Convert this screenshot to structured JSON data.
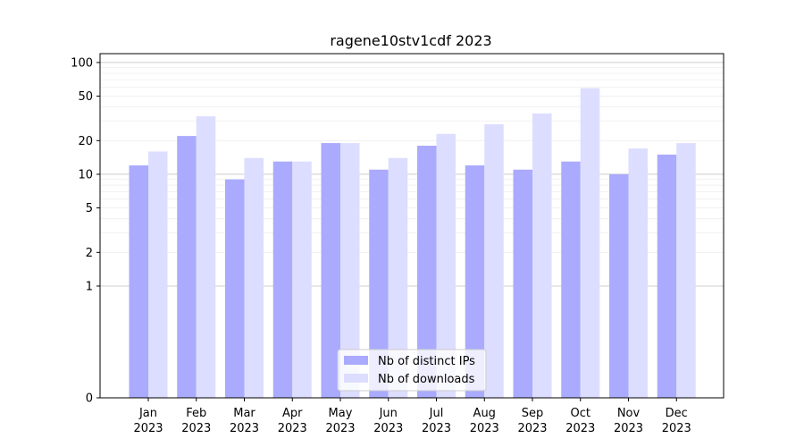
{
  "chart_data": {
    "type": "bar",
    "title": "ragene10stv1cdf 2023",
    "xlabel": "",
    "ylabel": "",
    "yscale": "symlog",
    "ylim": [
      0,
      120
    ],
    "yticks": [
      0,
      1,
      2,
      5,
      10,
      20,
      50,
      100
    ],
    "grid": true,
    "legend_position": "bottom-center",
    "categories": [
      [
        "Jan",
        "2023"
      ],
      [
        "Feb",
        "2023"
      ],
      [
        "Mar",
        "2023"
      ],
      [
        "Apr",
        "2023"
      ],
      [
        "May",
        "2023"
      ],
      [
        "Jun",
        "2023"
      ],
      [
        "Jul",
        "2023"
      ],
      [
        "Aug",
        "2023"
      ],
      [
        "Sep",
        "2023"
      ],
      [
        "Oct",
        "2023"
      ],
      [
        "Nov",
        "2023"
      ],
      [
        "Dec",
        "2023"
      ]
    ],
    "series": [
      {
        "name": "Nb of distinct IPs",
        "color": "#aaaaff",
        "values": [
          12,
          22,
          9,
          13,
          19,
          11,
          18,
          12,
          11,
          13,
          10,
          15
        ]
      },
      {
        "name": "Nb of downloads",
        "color": "#ddddff",
        "values": [
          16,
          33,
          14,
          13,
          19,
          14,
          23,
          28,
          35,
          59,
          17,
          19
        ]
      }
    ]
  }
}
